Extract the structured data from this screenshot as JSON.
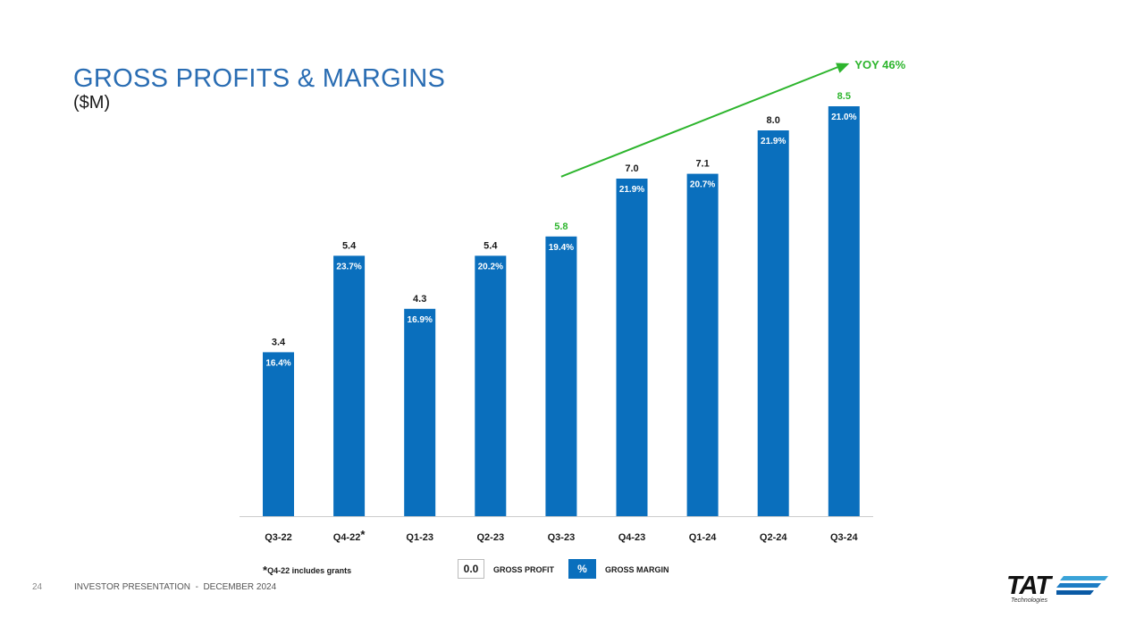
{
  "slide": {
    "title": "GROSS PROFITS & MARGINS",
    "subtitle": "($M)",
    "page_number": "24",
    "footer": "INVESTOR PRESENTATION  -  DECEMBER 2024",
    "footnote_star": "*",
    "footnote_text": "Q4-22 includes grants"
  },
  "legend": {
    "profit_sample": "0.0",
    "profit_label": "GROSS PROFIT",
    "margin_sample": "%",
    "margin_label": "GROSS MARGIN"
  },
  "logo": {
    "name": "TAT",
    "tagline": "Technologies",
    "icon": "speed-lines-icon"
  },
  "colors": {
    "title": "#2a6db3",
    "bar": "#0a6fbd",
    "highlight_green": "#2db52d",
    "text": "#1a1a1a",
    "axis": "#cccccc"
  },
  "chart_data": {
    "type": "bar",
    "categories": [
      "Q3-22",
      "Q4-22*",
      "Q1-23",
      "Q2-23",
      "Q3-23",
      "Q4-23",
      "Q1-24",
      "Q2-24",
      "Q3-24"
    ],
    "series": [
      {
        "values": [
          3.4,
          5.4,
          4.3,
          5.4,
          5.8,
          7.0,
          7.1,
          8.0,
          8.5
        ]
      }
    ],
    "value_labels": [
      "3.4",
      "5.4",
      "4.3",
      "5.4",
      "5.8",
      "7.0",
      "7.1",
      "8.0",
      "8.5"
    ],
    "margin_labels": [
      "16.4%",
      "23.7%",
      "16.9%",
      "20.2%",
      "19.4%",
      "21.9%",
      "20.7%",
      "21.9%",
      "21.0%"
    ],
    "highlighted_value_labels": [
      "Q3-23",
      "Q3-24"
    ],
    "ylim": [
      0,
      8.5
    ],
    "grid": false,
    "annotation": {
      "text": "YOY 46%",
      "type": "trend-arrow",
      "from_category": "Q3-23",
      "to_category": "Q3-24"
    }
  }
}
